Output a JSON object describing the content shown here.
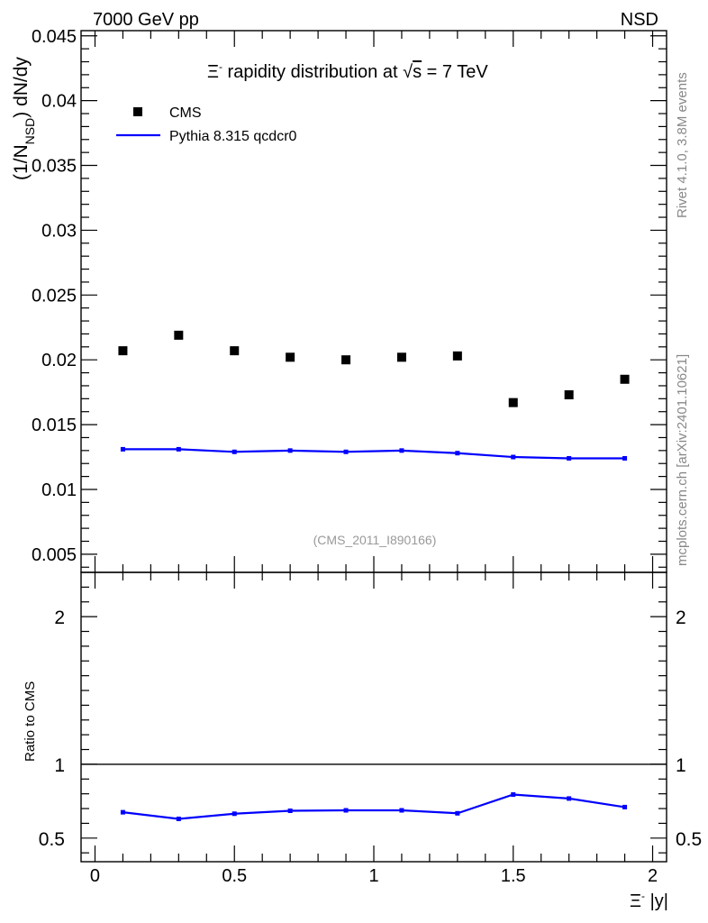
{
  "header": {
    "energy_label": "7000 GeV pp",
    "process_label": "NSD"
  },
  "side_labels": {
    "rivet": "Rivet 4.1.0,  3.8M events",
    "mcplots": "mcplots.cern.ch [arXiv:2401.10621]"
  },
  "chart_data": [
    {
      "type": "scatter",
      "title": "Ξ⁻ rapidity distribution at √s = 7 TeV",
      "title_parts": {
        "pre": "Ξ",
        "sup": "-",
        "mid": " rapidity distribution at ",
        "sqrt": "√",
        "s": "s",
        "post": " = 7 TeV"
      },
      "ylabel": "(1/N_NSD) dN/dy",
      "ylabel_parts": {
        "a": "(1/N",
        "sub": "NSD",
        "b": ") dN/dy"
      },
      "xlim": [
        -0.05,
        2.05
      ],
      "ylim": [
        0.0036,
        0.0454
      ],
      "y_ticks": [
        0.005,
        0.01,
        0.015,
        0.02,
        0.025,
        0.03,
        0.035,
        0.04,
        0.045
      ],
      "y_tick_labels": [
        "0.005",
        "0.01",
        "0.015",
        "0.02",
        "0.025",
        "0.03",
        "0.035",
        "0.04",
        "0.045"
      ],
      "watermark": "(CMS_2011_I890166)",
      "series": [
        {
          "name": "CMS",
          "kind": "markers",
          "color": "#000000",
          "x": [
            0.1,
            0.3,
            0.5,
            0.7,
            0.9,
            1.1,
            1.3,
            1.5,
            1.7,
            1.9
          ],
          "values": [
            0.0207,
            0.0219,
            0.0207,
            0.0202,
            0.02,
            0.0202,
            0.0203,
            0.0167,
            0.0173,
            0.0185
          ]
        },
        {
          "name": "Pythia 8.315 qcdcr0",
          "kind": "line",
          "color": "#0000ff",
          "x": [
            0.1,
            0.3,
            0.5,
            0.7,
            0.9,
            1.1,
            1.3,
            1.5,
            1.7,
            1.9
          ],
          "values": [
            0.0131,
            0.0131,
            0.0129,
            0.013,
            0.0129,
            0.013,
            0.0128,
            0.0125,
            0.0124,
            0.0124
          ]
        }
      ]
    },
    {
      "type": "line",
      "ylabel": "Ratio to CMS",
      "xlabel": "Ξ⁻ |y|",
      "xlabel_parts": {
        "pre": "Ξ",
        "sup": "-",
        "post": " |y|"
      },
      "xlim": [
        -0.05,
        2.05
      ],
      "ylim": [
        0.34,
        2.3
      ],
      "x_ticks": [
        0,
        0.5,
        1,
        1.5,
        2
      ],
      "x_tick_labels": [
        "0",
        "0.5",
        "1",
        "1.5",
        "2"
      ],
      "y_ticks": [
        0.5,
        1,
        2
      ],
      "y_tick_labels": [
        "0.5",
        "1",
        "2"
      ],
      "reference_line": 1,
      "series": [
        {
          "name": "Pythia 8.315 qcdcr0 / CMS",
          "color": "#0000ff",
          "x": [
            0.1,
            0.3,
            0.5,
            0.7,
            0.9,
            1.1,
            1.3,
            1.5,
            1.7,
            1.9
          ],
          "values": [
            0.675,
            0.63,
            0.665,
            0.685,
            0.688,
            0.688,
            0.668,
            0.795,
            0.768,
            0.71
          ]
        }
      ]
    }
  ]
}
